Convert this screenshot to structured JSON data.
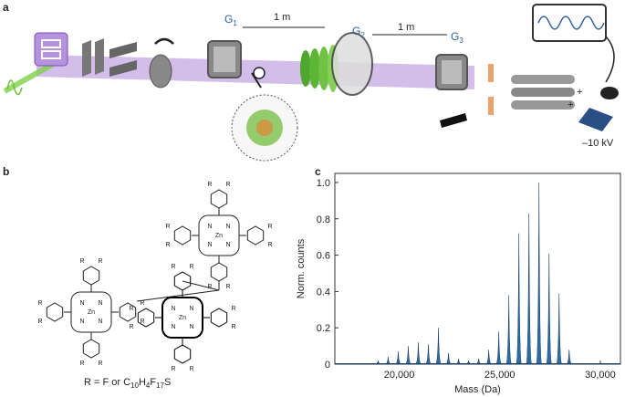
{
  "panel_a": {
    "label": "a",
    "gratings": [
      {
        "letter": "G",
        "index": "1"
      },
      {
        "letter": "G",
        "index": "2"
      },
      {
        "letter": "G",
        "index": "3"
      }
    ],
    "distances": [
      "1 m",
      "1 m"
    ],
    "polarity": "+",
    "voltage": "–10 kV"
  },
  "panel_b": {
    "label": "b",
    "atoms": {
      "zinc": "Zn",
      "nitrogen": "N",
      "substituent": "R"
    },
    "caption": [
      "R = F or C",
      "10",
      "H",
      "4",
      "F",
      "17",
      "S"
    ]
  },
  "chart_data": {
    "type": "spectrum",
    "label": "c",
    "x_label": "Mass (Da)",
    "y_label": "Norm. counts",
    "color": "#2d6a9f",
    "x": [
      18950,
      19450,
      19950,
      20450,
      20950,
      21450,
      21950,
      22450,
      22950,
      23450,
      23950,
      24450,
      24950,
      25450,
      25950,
      26450,
      26950,
      27450,
      27950,
      28450
    ],
    "values": [
      0.02,
      0.04,
      0.07,
      0.1,
      0.12,
      0.11,
      0.2,
      0.06,
      0.03,
      0.02,
      0.03,
      0.08,
      0.18,
      0.38,
      0.72,
      0.83,
      1.0,
      0.61,
      0.39,
      0.08
    ],
    "xlim": [
      16800,
      31000
    ],
    "xticks": [
      {
        "value": 20000,
        "label": "20,000"
      },
      {
        "value": 25000,
        "label": "25,000"
      },
      {
        "value": 30000,
        "label": "30,000"
      }
    ],
    "ylim": [
      0,
      1.05
    ],
    "yticks": [
      0,
      0.2,
      0.4,
      0.6,
      0.8,
      {
        "value": 1,
        "label": "1.0"
      }
    ]
  }
}
